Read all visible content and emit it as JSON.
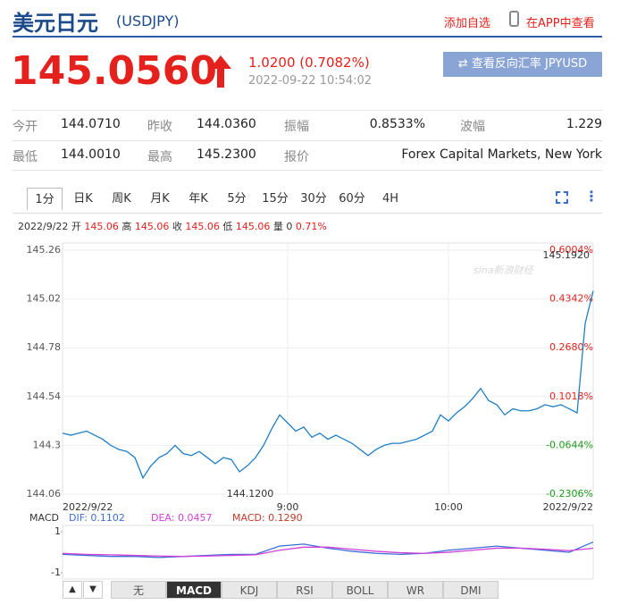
{
  "header": {
    "title": "美元日元",
    "code": "(USDJPY)",
    "add_watchlist": "添加自选",
    "app_view": "在APP中查看"
  },
  "quote": {
    "price": "145.0560",
    "change": "1.0200 (0.7082%)",
    "time": "2022-09-22 10:54:02",
    "reverse_button": "查看反向汇率 JPYUSD"
  },
  "stats": {
    "rows": [
      [
        [
          "今开",
          "144.0710"
        ],
        [
          "昨收",
          "144.0360"
        ],
        [
          "振幅",
          "0.8533%"
        ],
        [
          "波幅",
          "1.229"
        ]
      ],
      [
        [
          "最低",
          "144.0010"
        ],
        [
          "最高",
          "145.2300"
        ],
        [
          "报价",
          "Forex Capital Markets, New York"
        ]
      ]
    ]
  },
  "tabs": [
    "1分",
    "日K",
    "周K",
    "月K",
    "年K",
    "5分",
    "15分",
    "30分",
    "60分",
    "4H"
  ],
  "info_line": {
    "date": "2022/9/22",
    "items": [
      [
        "开",
        "145.06"
      ],
      [
        "高",
        "145.06"
      ],
      [
        "收",
        "145.06"
      ],
      [
        "低",
        "145.06"
      ],
      [
        "量",
        "0"
      ]
    ],
    "pct": "0.71%"
  },
  "chart_data": [
    {
      "type": "line",
      "color": "#1f7fc4",
      "watermark": "sina新浪财经",
      "max_label": "145.1920",
      "min_label": "144.1200",
      "values": [
        144.36,
        144.35,
        144.36,
        144.37,
        144.35,
        144.33,
        144.3,
        144.28,
        144.27,
        144.24,
        144.14,
        144.2,
        144.24,
        144.26,
        144.3,
        144.26,
        144.25,
        144.27,
        144.24,
        144.21,
        144.24,
        144.23,
        144.17,
        144.2,
        144.24,
        144.3,
        144.38,
        144.45,
        144.41,
        144.37,
        144.39,
        144.34,
        144.36,
        144.33,
        144.35,
        144.33,
        144.31,
        144.28,
        144.25,
        144.28,
        144.3,
        144.31,
        144.31,
        144.32,
        144.33,
        144.35,
        144.37,
        144.45,
        144.42,
        144.46,
        144.49,
        144.53,
        144.58,
        144.52,
        144.5,
        144.45,
        144.48,
        144.47,
        144.47,
        144.48,
        144.5,
        144.49,
        144.5,
        144.48,
        144.46,
        144.9,
        145.06
      ],
      "xlim": [
        0,
        66
      ],
      "xticks": [
        {
          "value": 0,
          "label": "2022/9/22"
        },
        {
          "value": 28,
          "label": "9:00"
        },
        {
          "value": 48,
          "label": "10:00"
        },
        {
          "value": 66,
          "label": "2022/9/22"
        }
      ],
      "ylim": [
        144.06,
        145.26
      ],
      "yticks": [
        145.26,
        145.02,
        144.78,
        144.54,
        144.3,
        144.06
      ],
      "y2lim": [
        -0.2306,
        0.6004
      ],
      "y2ticks": [
        {
          "value": 0.6004,
          "label": "0.6004%"
        },
        {
          "value": 0.4342,
          "label": "0.4342%"
        },
        {
          "value": 0.268,
          "label": "0.2680%"
        },
        {
          "value": 0.1018,
          "label": "0.1018%"
        },
        {
          "value": -0.0644,
          "label": "-0.0644%"
        },
        {
          "value": -0.2306,
          "label": "-0.2306%"
        }
      ],
      "grid": true
    },
    {
      "type": "line",
      "title": "MACD",
      "macd_label": "MACD: 0.1290",
      "ylim": [
        -1.6,
        1.65
      ],
      "yticks": [
        1,
        -1
      ],
      "series": [
        {
          "name": "DIF: 0.1102",
          "color": "#3b6fd6",
          "values": [
            -0.1,
            -0.15,
            -0.2,
            -0.2,
            -0.25,
            -0.2,
            -0.15,
            -0.1,
            -0.1,
            0.3,
            0.4,
            0.2,
            0.05,
            -0.05,
            -0.1,
            -0.05,
            0.1,
            0.2,
            0.3,
            0.2,
            0.1,
            0.0,
            0.5
          ]
        },
        {
          "name": "DEA: 0.0457",
          "color": "#d040d8",
          "values": [
            -0.05,
            -0.1,
            -0.12,
            -0.15,
            -0.18,
            -0.2,
            -0.18,
            -0.15,
            -0.12,
            0.1,
            0.25,
            0.25,
            0.15,
            0.05,
            -0.02,
            -0.05,
            0.0,
            0.1,
            0.2,
            0.2,
            0.15,
            0.08,
            0.2
          ]
        }
      ]
    }
  ],
  "indicator_tabs": [
    "无",
    "MACD",
    "KDJ",
    "RSI",
    "BOLL",
    "WR",
    "DMI"
  ]
}
